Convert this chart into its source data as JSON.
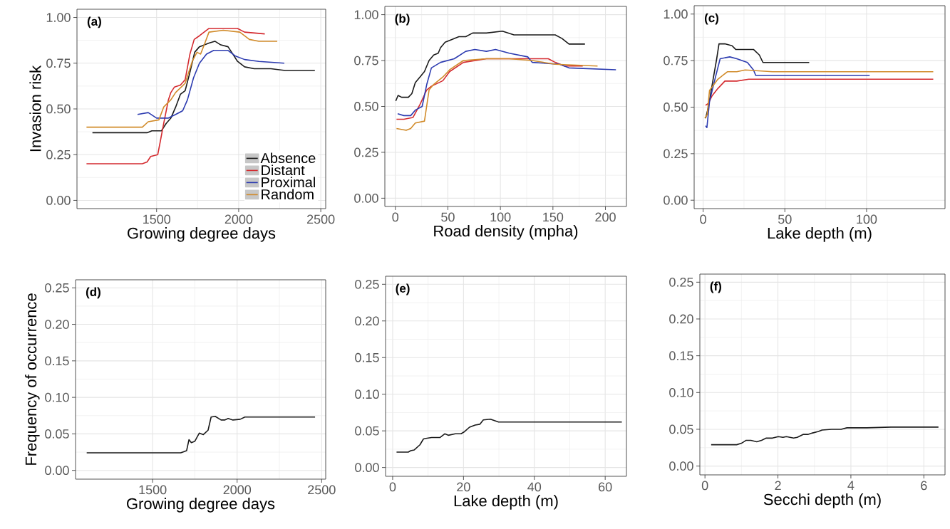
{
  "chart_data": [
    {
      "type": "line",
      "title": "(a)",
      "xlabel": "Growing degree days",
      "ylabel": "Invasion risk",
      "xlim": [
        1015,
        2530
      ],
      "ylim": [
        -0.045,
        1.045
      ],
      "xticks": [
        1500,
        2000,
        2500
      ],
      "yticks": [
        {
          "value": 0,
          "label": "0.00"
        },
        {
          "value": 0.25,
          "label": "0.25"
        },
        {
          "value": 0.5,
          "label": "0.50"
        },
        {
          "value": 0.75,
          "label": "0.75"
        },
        {
          "value": 1,
          "label": "1.00"
        }
      ],
      "grid": true,
      "legend": "bottom right",
      "series": [
        {
          "name": "Absence",
          "color": "#1a1a1a",
          "x": [
            1109,
            1442,
            1471,
            1529,
            1558,
            1587,
            1616,
            1645,
            1674,
            1703,
            1732,
            1761,
            1790,
            1819,
            1855,
            1891,
            1935,
            1964,
            1993,
            2036,
            2094,
            2196,
            2283,
            2464
          ],
          "values": [
            0.37,
            0.37,
            0.38,
            0.38,
            0.42,
            0.45,
            0.51,
            0.58,
            0.6,
            0.7,
            0.81,
            0.84,
            0.85,
            0.86,
            0.87,
            0.85,
            0.84,
            0.8,
            0.76,
            0.73,
            0.72,
            0.72,
            0.71,
            0.71
          ]
        },
        {
          "name": "Distant",
          "color": "#d42a2f",
          "x": [
            1073,
            1413,
            1442,
            1464,
            1507,
            1522,
            1543,
            1572,
            1587,
            1609,
            1645,
            1674,
            1703,
            1729,
            1761,
            1819,
            1906,
            1993,
            2036,
            2159
          ],
          "values": [
            0.2,
            0.2,
            0.21,
            0.24,
            0.25,
            0.32,
            0.42,
            0.55,
            0.59,
            0.62,
            0.63,
            0.66,
            0.8,
            0.88,
            0.9,
            0.94,
            0.94,
            0.94,
            0.92,
            0.91
          ]
        },
        {
          "name": "Proximal",
          "color": "#2c3bb0",
          "x": [
            1384,
            1449,
            1500,
            1572,
            1616,
            1659,
            1688,
            1725,
            1761,
            1804,
            1848,
            1935,
            1978,
            2036,
            2123,
            2278
          ],
          "values": [
            0.47,
            0.48,
            0.45,
            0.45,
            0.47,
            0.49,
            0.55,
            0.67,
            0.75,
            0.8,
            0.82,
            0.82,
            0.79,
            0.77,
            0.76,
            0.75
          ]
        },
        {
          "name": "Random",
          "color": "#d18b2a",
          "x": [
            1073,
            1413,
            1449,
            1514,
            1543,
            1587,
            1616,
            1674,
            1717,
            1746,
            1768,
            1790,
            1819,
            1906,
            2007,
            2065,
            2123,
            2235
          ],
          "values": [
            0.4,
            0.4,
            0.43,
            0.44,
            0.51,
            0.55,
            0.59,
            0.64,
            0.76,
            0.81,
            0.8,
            0.85,
            0.92,
            0.93,
            0.92,
            0.88,
            0.87,
            0.87
          ]
        }
      ]
    },
    {
      "type": "line",
      "title": "(b)",
      "xlabel": "Road density (mpha)",
      "xlim": [
        -10,
        220
      ],
      "ylim": [
        -0.045,
        1.045
      ],
      "xticks": [
        0,
        50,
        100,
        150,
        200
      ],
      "yticks": [
        {
          "value": 0,
          "label": "0.00"
        },
        {
          "value": 0.25,
          "label": "0.25"
        },
        {
          "value": 0.5,
          "label": "0.50"
        },
        {
          "value": 0.75,
          "label": "0.75"
        },
        {
          "value": 1,
          "label": "1.00"
        }
      ],
      "grid": true,
      "series": [
        {
          "color": "#1a1a1a",
          "x": [
            0.4,
            2.6,
            5.9,
            12.4,
            15.7,
            19,
            23.4,
            27.7,
            32.1,
            36.5,
            40.8,
            43,
            47.4,
            51.7,
            60.5,
            67,
            73.6,
            86.7,
            101.9,
            112.9,
            130.3,
            152.2,
            158.7,
            165.3,
            180.5
          ],
          "values": [
            0.53,
            0.56,
            0.55,
            0.55,
            0.57,
            0.63,
            0.66,
            0.69,
            0.75,
            0.78,
            0.79,
            0.82,
            0.85,
            0.86,
            0.88,
            0.88,
            0.9,
            0.9,
            0.91,
            0.89,
            0.89,
            0.89,
            0.87,
            0.84,
            0.84
          ]
        },
        {
          "color": "#d42a2f",
          "x": [
            1.1,
            8.1,
            16.8,
            23.4,
            29.9,
            34.3,
            45.2,
            51.7,
            64.8,
            86.7,
            108.5,
            130.3,
            145.6,
            152.2,
            160.9,
            178.4
          ],
          "values": [
            0.43,
            0.43,
            0.44,
            0.51,
            0.59,
            0.61,
            0.64,
            0.69,
            0.74,
            0.76,
            0.76,
            0.76,
            0.76,
            0.74,
            0.72,
            0.72
          ]
        },
        {
          "color": "#2c3bb0",
          "x": [
            2.2,
            8.1,
            14.6,
            19,
            25.5,
            29.9,
            34.3,
            43,
            56.1,
            67,
            75.7,
            86.7,
            95.4,
            108.5,
            126,
            130.3,
            156.5,
            165.3,
            210
          ],
          "values": [
            0.46,
            0.45,
            0.45,
            0.48,
            0.5,
            0.62,
            0.71,
            0.74,
            0.76,
            0.8,
            0.81,
            0.8,
            0.81,
            0.79,
            0.77,
            0.74,
            0.73,
            0.71,
            0.7
          ]
        },
        {
          "color": "#d18b2a",
          "x": [
            1.1,
            10.3,
            14.6,
            19,
            27.7,
            32.1,
            36.5,
            45.2,
            51.7,
            64.8,
            86.7,
            108.5,
            130.3,
            152.2,
            192.5
          ],
          "values": [
            0.38,
            0.37,
            0.38,
            0.41,
            0.42,
            0.59,
            0.62,
            0.66,
            0.7,
            0.75,
            0.76,
            0.76,
            0.75,
            0.73,
            0.72
          ]
        }
      ]
    },
    {
      "type": "line",
      "title": "(c)",
      "xlabel": "Lake depth (m)",
      "xlim": [
        -5.5,
        148
      ],
      "ylim": [
        -0.045,
        1.045
      ],
      "xticks": [
        0,
        50,
        100
      ],
      "yticks": [
        {
          "value": 0,
          "label": "0.00"
        },
        {
          "value": 0.25,
          "label": "0.25"
        },
        {
          "value": 0.5,
          "label": "0.50"
        },
        {
          "value": 0.75,
          "label": "0.75"
        },
        {
          "value": 1,
          "label": "1.00"
        }
      ],
      "grid": true,
      "series": [
        {
          "color": "#1a1a1a",
          "x": [
            1.5,
            3.2,
            6.1,
            8.3,
            9.7,
            13.3,
            17.7,
            19.9,
            25,
            30.8,
            34.4,
            36.6,
            64.9
          ],
          "values": [
            0.44,
            0.5,
            0.65,
            0.76,
            0.84,
            0.84,
            0.83,
            0.81,
            0.81,
            0.81,
            0.78,
            0.74,
            0.74
          ]
        },
        {
          "color": "#d42a2f",
          "x": [
            1.5,
            3.2,
            5.4,
            9,
            13.3,
            20.6,
            27.9,
            42.4,
            140.8
          ],
          "values": [
            0.51,
            0.52,
            0.56,
            0.6,
            0.64,
            0.64,
            0.65,
            0.65,
            0.65
          ]
        },
        {
          "color": "#2c3bb0",
          "x": [
            1.5,
            2.3,
            3.9,
            7.5,
            10.4,
            16.3,
            20.6,
            27.1,
            30.8,
            32.2,
            67,
            101.9
          ],
          "values": [
            0.4,
            0.39,
            0.53,
            0.66,
            0.76,
            0.77,
            0.76,
            0.74,
            0.7,
            0.67,
            0.67,
            0.67
          ]
        },
        {
          "color": "#d18b2a",
          "x": [
            1,
            2.5,
            3.9,
            9,
            14.8,
            20.6,
            25.7,
            42.4,
            140.8
          ],
          "values": [
            0.44,
            0.46,
            0.59,
            0.65,
            0.69,
            0.69,
            0.7,
            0.69,
            0.69
          ]
        }
      ]
    },
    {
      "type": "line",
      "title": "(d)",
      "xlabel": "Growing degree days",
      "ylabel": "Frequency of occurrence",
      "xlim": [
        1044,
        2524
      ],
      "ylim": [
        -0.012,
        0.261
      ],
      "xticks": [
        1500,
        2000,
        2500
      ],
      "yticks": [
        {
          "value": 0,
          "label": "0.00"
        },
        {
          "value": 0.05,
          "label": "0.05"
        },
        {
          "value": 0.1,
          "label": "0.10"
        },
        {
          "value": 0.15,
          "label": "0.15"
        },
        {
          "value": 0.2,
          "label": "0.20"
        },
        {
          "value": 0.25,
          "label": "0.25"
        }
      ],
      "grid": true,
      "series": [
        {
          "color": "#1a1a1a",
          "x": [
            1110,
            1666,
            1701,
            1715,
            1729,
            1750,
            1776,
            1800,
            1828,
            1846,
            1870,
            1905,
            1926,
            1947,
            1975,
            2018,
            2046,
            2088,
            2461
          ],
          "values": [
            0.024,
            0.024,
            0.027,
            0.042,
            0.038,
            0.04,
            0.051,
            0.049,
            0.055,
            0.073,
            0.074,
            0.069,
            0.069,
            0.071,
            0.069,
            0.07,
            0.073,
            0.073,
            0.073
          ]
        }
      ]
    },
    {
      "type": "line",
      "title": "(e)",
      "xlabel": "Lake depth (m)",
      "xlim": [
        -2,
        66
      ],
      "ylim": [
        -0.012,
        0.261
      ],
      "xticks": [
        0,
        20,
        40,
        60
      ],
      "yticks": [
        {
          "value": 0,
          "label": "0.00"
        },
        {
          "value": 0.05,
          "label": "0.05"
        },
        {
          "value": 0.1,
          "label": "0.10"
        },
        {
          "value": 0.15,
          "label": "0.15"
        },
        {
          "value": 0.2,
          "label": "0.20"
        },
        {
          "value": 0.25,
          "label": "0.25"
        }
      ],
      "grid": true,
      "series": [
        {
          "color": "#1a1a1a",
          "x": [
            1.1,
            4.4,
            5.1,
            6.1,
            7.7,
            8.7,
            9.7,
            11,
            13.4,
            14.7,
            15.7,
            17.7,
            19.3,
            20.3,
            21.7,
            23.3,
            24.6,
            25.6,
            27.6,
            29.9,
            64.7
          ],
          "values": [
            0.021,
            0.021,
            0.023,
            0.024,
            0.031,
            0.039,
            0.04,
            0.041,
            0.041,
            0.046,
            0.044,
            0.046,
            0.046,
            0.049,
            0.055,
            0.058,
            0.059,
            0.065,
            0.066,
            0.062,
            0.062
          ]
        }
      ]
    },
    {
      "type": "line",
      "title": "(f)",
      "xlabel": "Secchi depth (m)",
      "xlim": [
        -0.14,
        6.58
      ],
      "ylim": [
        -0.012,
        0.261
      ],
      "xticks": [
        0,
        2,
        4,
        6
      ],
      "yticks": [
        {
          "value": 0,
          "label": "0.00"
        },
        {
          "value": 0.05,
          "label": "0.05"
        },
        {
          "value": 0.1,
          "label": "0.10"
        },
        {
          "value": 0.15,
          "label": "0.15"
        },
        {
          "value": 0.2,
          "label": "0.20"
        },
        {
          "value": 0.25,
          "label": "0.25"
        }
      ],
      "grid": true,
      "series": [
        {
          "color": "#1a1a1a",
          "x": [
            0.17,
            0.87,
            1.0,
            1.13,
            1.26,
            1.42,
            1.55,
            1.68,
            1.85,
            2.01,
            2.14,
            2.23,
            2.43,
            2.53,
            2.69,
            2.82,
            2.95,
            3.11,
            3.21,
            3.47,
            3.73,
            3.89,
            4.44,
            5.1,
            5.23,
            6.4
          ],
          "values": [
            0.029,
            0.029,
            0.031,
            0.035,
            0.035,
            0.033,
            0.035,
            0.038,
            0.038,
            0.04,
            0.039,
            0.04,
            0.038,
            0.039,
            0.043,
            0.043,
            0.045,
            0.047,
            0.049,
            0.05,
            0.05,
            0.052,
            0.052,
            0.053,
            0.053,
            0.053
          ]
        }
      ]
    }
  ]
}
